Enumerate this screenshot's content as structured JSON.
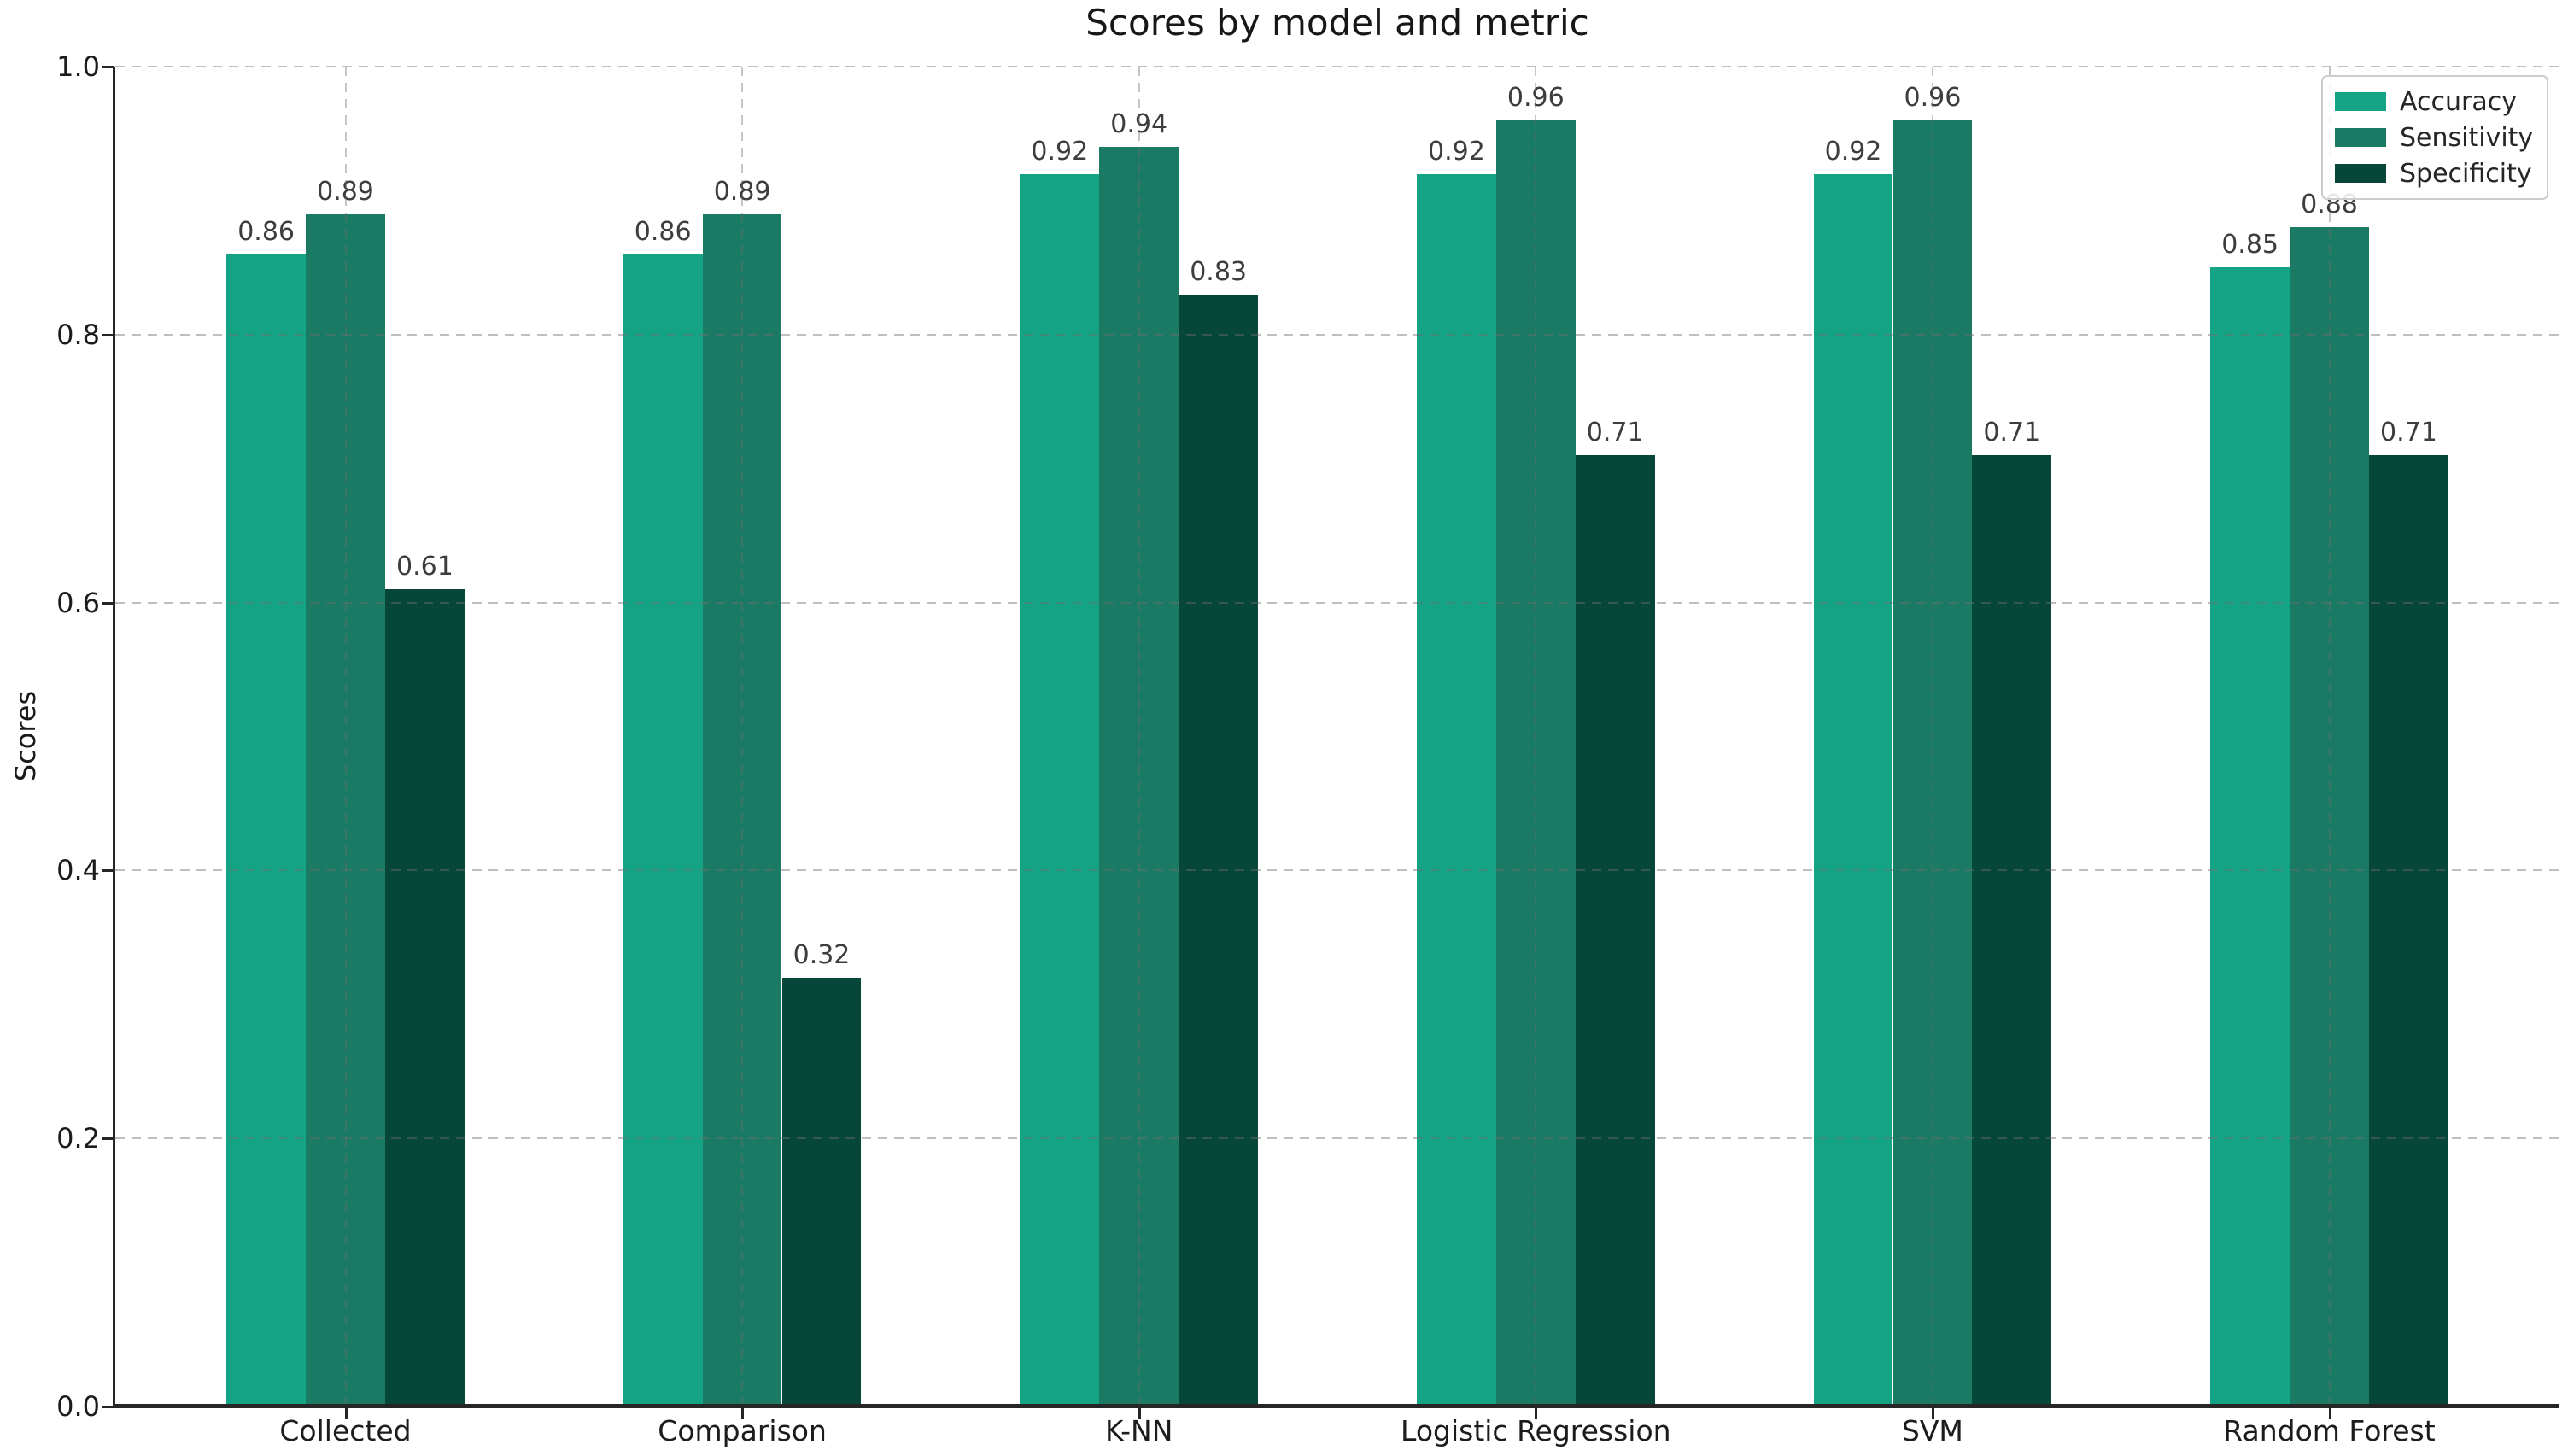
{
  "figure": {
    "title": "Scores by model and metric"
  },
  "chart_data": {
    "type": "bar",
    "title": "Scores by model and metric",
    "xlabel": "",
    "ylabel": "Scores",
    "ylim": [
      0.0,
      1.0
    ],
    "ytick_labels": [
      "0.0",
      "0.2",
      "0.4",
      "0.6",
      "0.8",
      "1.0"
    ],
    "grid": true,
    "grid_style": "dashed",
    "legend_position": "upper right",
    "categories": [
      "Collected",
      "Comparison",
      "K-NN",
      "Logistic Regression",
      "SVM",
      "Random Forest"
    ],
    "series": [
      {
        "name": "Accuracy",
        "color": "#14a385",
        "values": [
          0.86,
          0.86,
          0.92,
          0.92,
          0.92,
          0.85
        ]
      },
      {
        "name": "Sensitivity",
        "color": "#1b7a63",
        "values": [
          0.89,
          0.89,
          0.94,
          0.96,
          0.96,
          0.88
        ]
      },
      {
        "name": "Specificity",
        "color": "#074739",
        "values": [
          0.61,
          0.32,
          0.83,
          0.71,
          0.71,
          0.71
        ]
      }
    ],
    "bar_value_labels": [
      [
        "0.86",
        "0.86",
        "0.92",
        "0.92",
        "0.92",
        "0.85"
      ],
      [
        "0.89",
        "0.89",
        "0.94",
        "0.96",
        "0.96",
        "0.88"
      ],
      [
        "0.61",
        "0.32",
        "0.83",
        "0.71",
        "0.71",
        "0.71"
      ]
    ]
  }
}
